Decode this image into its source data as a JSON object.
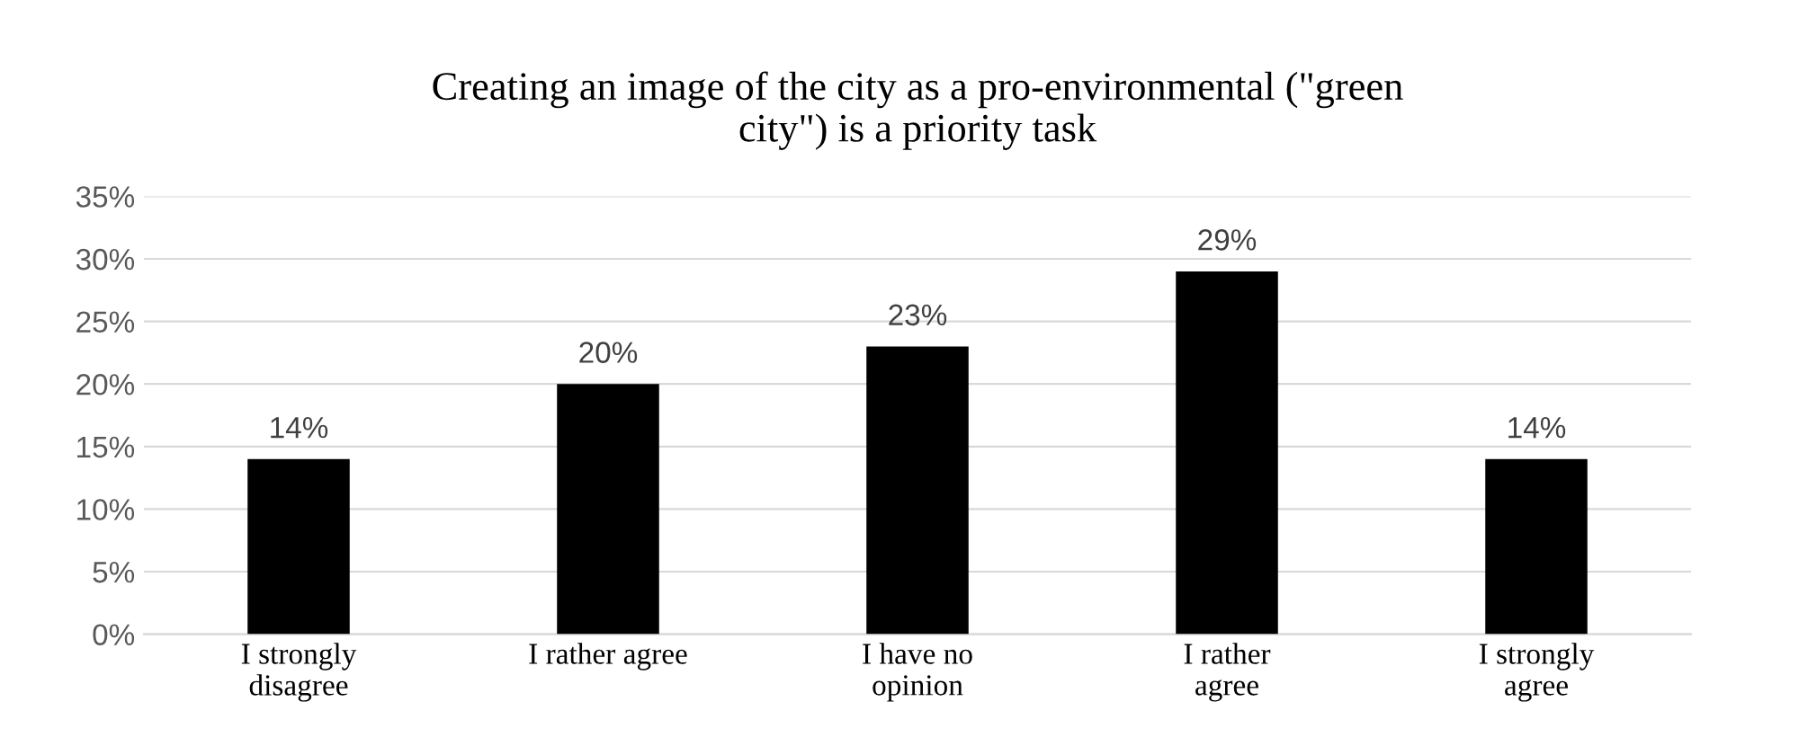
{
  "chart_data": {
    "type": "bar",
    "title": "Creating an image of the city as a pro-environmental (\"green\ncity\") is a priority task",
    "categories": [
      "I strongly\ndisagree",
      "I rather agree",
      "I have no\nopinion",
      "I rather\nagree",
      "I strongly\nagree"
    ],
    "values": [
      14,
      20,
      23,
      29,
      14
    ],
    "color": "#000000",
    "data_labels": true,
    "value_labels": [
      "14%",
      "20%",
      "23%",
      "29%",
      "14%"
    ],
    "ylim": [
      0,
      35
    ],
    "yticks": [
      {
        "value": 0,
        "label": "0%"
      },
      {
        "value": 5,
        "label": "5%"
      },
      {
        "value": 10,
        "label": "10%"
      },
      {
        "value": 15,
        "label": "15%"
      },
      {
        "value": 20,
        "label": "20%"
      },
      {
        "value": 25,
        "label": "25%"
      },
      {
        "value": 30,
        "label": "30%"
      },
      {
        "value": 35,
        "label": "35%"
      }
    ],
    "grid": "y",
    "legend": false
  }
}
